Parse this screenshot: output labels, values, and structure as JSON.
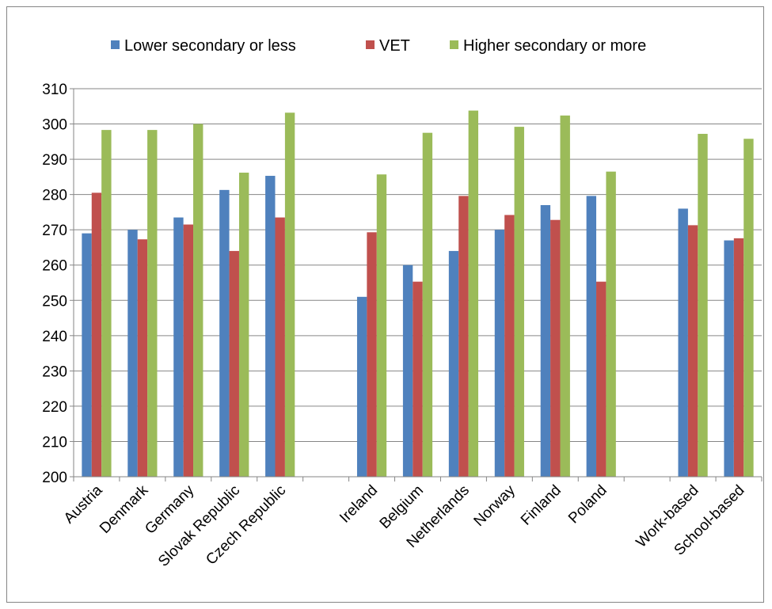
{
  "chart_data": {
    "type": "bar",
    "title": "",
    "xlabel": "",
    "ylabel": "",
    "ylim": [
      200,
      310
    ],
    "yticks": [
      200,
      210,
      220,
      230,
      240,
      250,
      260,
      270,
      280,
      290,
      300,
      310
    ],
    "grid": true,
    "legend_position": "top",
    "categories": [
      "Austria",
      "Denmark",
      "Germany",
      "Slovak Republic",
      "Czech Republic",
      "",
      "Ireland",
      "Belgium",
      "Netherlands",
      "Norway",
      "Finland",
      "Poland",
      "",
      "Work-based",
      "School-based"
    ],
    "series": [
      {
        "name": "Lower secondary or less",
        "color": "#4F81BD",
        "values": [
          269,
          270,
          273.5,
          281.3,
          285.3,
          null,
          251,
          260,
          264,
          270,
          277,
          279.6,
          null,
          276,
          267
        ]
      },
      {
        "name": "VET",
        "color": "#C0504D",
        "values": [
          280.5,
          267.3,
          271.5,
          264,
          273.5,
          null,
          269.3,
          255.3,
          279.6,
          274.2,
          272.8,
          255.3,
          null,
          271.3,
          267.6
        ]
      },
      {
        "name": "Higher secondary or more",
        "color": "#9BBB59",
        "values": [
          298.3,
          298.3,
          300,
          286.2,
          303.2,
          null,
          285.7,
          297.5,
          303.8,
          299.2,
          302.4,
          286.5,
          null,
          297.2,
          295.8
        ]
      }
    ]
  }
}
